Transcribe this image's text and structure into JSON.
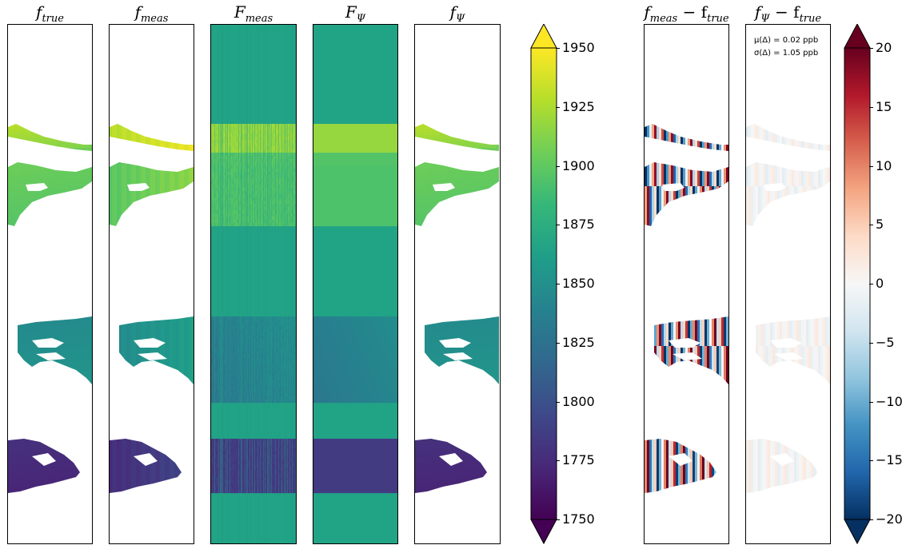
{
  "panels": [
    {
      "id": "f_true",
      "title_main": "f",
      "title_sub": "true",
      "kind": "field"
    },
    {
      "id": "f_meas",
      "title_main": "f",
      "title_sub": "meas",
      "kind": "field_striped"
    },
    {
      "id": "F_meas",
      "title_main": "F",
      "title_sub": "meas",
      "kind": "full_striped"
    },
    {
      "id": "F_psi",
      "title_main": "F",
      "title_sub": "Ψ",
      "kind": "full"
    },
    {
      "id": "f_psi",
      "title_main": "f",
      "title_sub": "Ψ",
      "kind": "field"
    },
    {
      "id": "diff_meas",
      "title_main": "f",
      "title_sub": "meas",
      "title_rest": " − f",
      "title_sub2": "true",
      "kind": "diff_strong"
    },
    {
      "id": "diff_psi",
      "title_main": "f",
      "title_sub": "Ψ",
      "title_rest": " − f",
      "title_sub2": "true",
      "kind": "diff_weak"
    }
  ],
  "stats": {
    "mean_label": "μ(Δ) = 0.02 ppb",
    "std_label": "σ(Δ) = 1.05 ppb"
  },
  "chart_data": [
    {
      "type": "heatmap",
      "name": "concentration colorbar",
      "colormap": "viridis",
      "vmin": 1750,
      "vmax": 1950,
      "extend": "both",
      "ticks": [
        "1750",
        "1775",
        "1800",
        "1825",
        "1850",
        "1875",
        "1900",
        "1925",
        "1950"
      ],
      "tick_values": [
        1750,
        1775,
        1800,
        1825,
        1850,
        1875,
        1900,
        1925,
        1950
      ]
    },
    {
      "type": "heatmap",
      "name": "difference colorbar",
      "colormap": "RdBu_r",
      "vmin": -20,
      "vmax": 20,
      "extend": "both",
      "ticks": [
        "−20",
        "−15",
        "−10",
        "−5",
        "0",
        "5",
        "10",
        "15",
        "20"
      ],
      "tick_values": [
        -20,
        -15,
        -10,
        -5,
        0,
        5,
        10,
        15,
        20
      ]
    }
  ],
  "colors": {
    "viridis": [
      "#440154",
      "#482878",
      "#3e4989",
      "#31688e",
      "#26828e",
      "#1f9e89",
      "#35b779",
      "#6ece58",
      "#b5de2b",
      "#fde725"
    ],
    "rdbu": [
      "#053061",
      "#2166ac",
      "#4393c3",
      "#92c5de",
      "#d1e5f0",
      "#f7f7f7",
      "#fddbc7",
      "#f4a582",
      "#d6604d",
      "#b2182b",
      "#67001f"
    ],
    "background_field": "#21a386"
  }
}
